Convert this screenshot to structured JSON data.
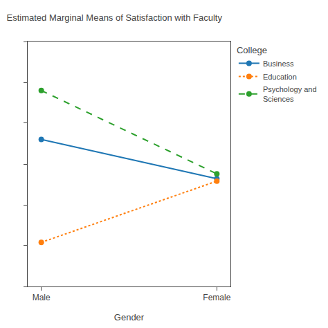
{
  "chart_data": {
    "type": "line",
    "title": "Estimated Marginal Means of Satisfaction with Faculty",
    "x_label": "Gender",
    "legend_title": "College",
    "categories": [
      "Male",
      "Female"
    ],
    "series": [
      {
        "name": "Business",
        "line_style": "solid",
        "marker": "circle",
        "values": [
          0.6,
          0.44
        ]
      },
      {
        "name": "Education",
        "line_style": "dotted",
        "marker": "circle",
        "values": [
          0.18,
          0.43
        ]
      },
      {
        "name": "Psychology and\nSciences",
        "line_style": "dashed",
        "marker": "circle",
        "values": [
          0.8,
          0.46
        ]
      }
    ],
    "ylim": [
      0.0,
      1.0
    ],
    "yticks": [
      0.0,
      0.167,
      0.333,
      0.5,
      0.667,
      0.833,
      1.0
    ],
    "tick_labels": "x",
    "grid": false,
    "legend": "right"
  }
}
